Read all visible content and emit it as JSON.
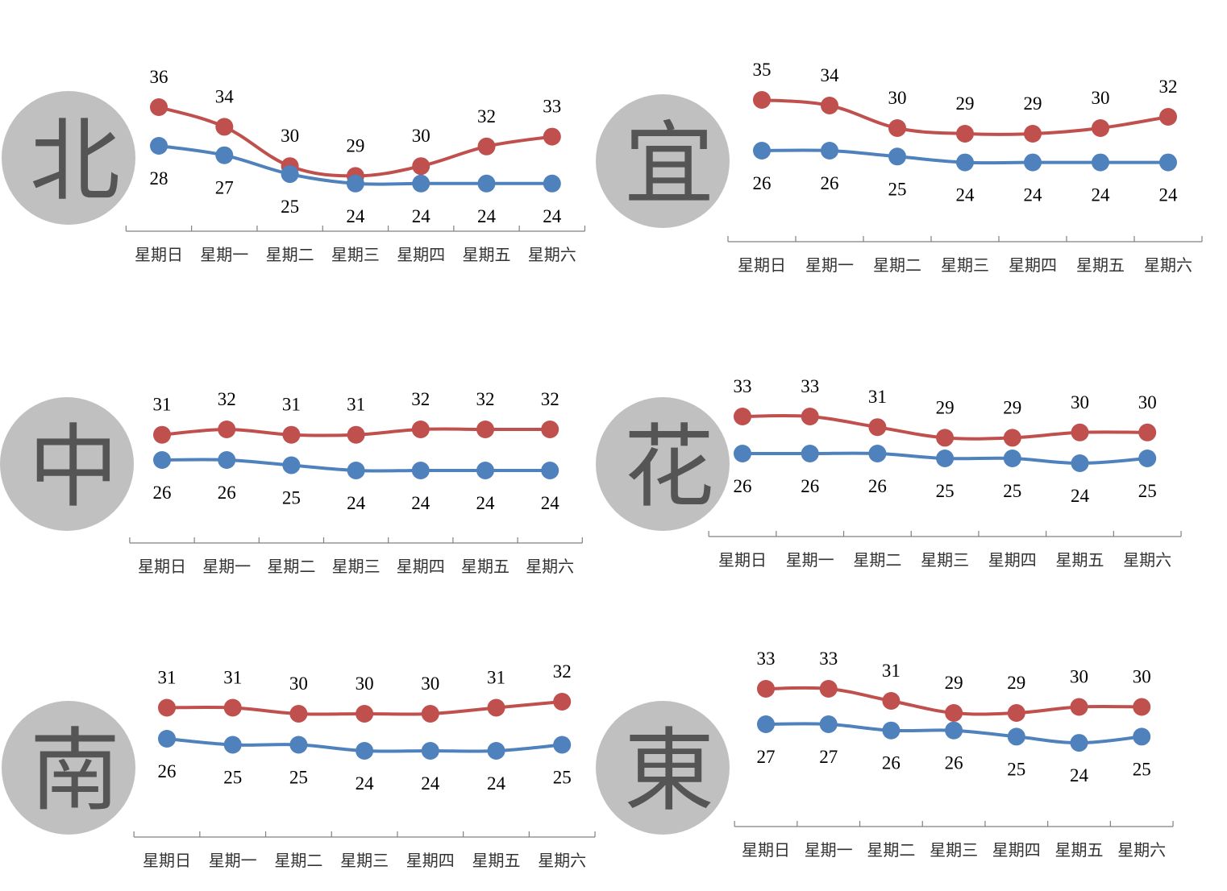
{
  "colors": {
    "high": "#c0504d",
    "low": "#4f81bd",
    "badge": "#c0c0c0",
    "badge_text": "#555555",
    "axis": "#808080"
  },
  "chart_data": [
    {
      "type": "line",
      "region": "北",
      "categories": [
        "星期日",
        "星期一",
        "星期二",
        "星期三",
        "星期四",
        "星期五",
        "星期六"
      ],
      "series": [
        {
          "values": [
            36,
            34,
            30,
            29,
            30,
            32,
            33
          ]
        },
        {
          "values": [
            28,
            27,
            25,
            24,
            24,
            24,
            24
          ]
        }
      ]
    },
    {
      "type": "line",
      "region": "宜",
      "categories": [
        "星期日",
        "星期一",
        "星期二",
        "星期三",
        "星期四",
        "星期五",
        "星期六"
      ],
      "series": [
        {
          "values": [
            35,
            34,
            30,
            29,
            29,
            30,
            32
          ]
        },
        {
          "values": [
            26,
            26,
            25,
            24,
            24,
            24,
            24
          ]
        }
      ]
    },
    {
      "type": "line",
      "region": "中",
      "categories": [
        "星期日",
        "星期一",
        "星期二",
        "星期三",
        "星期四",
        "星期五",
        "星期六"
      ],
      "series": [
        {
          "values": [
            31,
            32,
            31,
            31,
            32,
            32,
            32
          ]
        },
        {
          "values": [
            26,
            26,
            25,
            24,
            24,
            24,
            24
          ]
        }
      ]
    },
    {
      "type": "line",
      "region": "花",
      "categories": [
        "星期日",
        "星期一",
        "星期二",
        "星期三",
        "星期四",
        "星期五",
        "星期六"
      ],
      "series": [
        {
          "values": [
            33,
            33,
            31,
            29,
            29,
            30,
            30
          ]
        },
        {
          "values": [
            26,
            26,
            26,
            25,
            25,
            24,
            25
          ]
        }
      ]
    },
    {
      "type": "line",
      "region": "南",
      "categories": [
        "星期日",
        "星期一",
        "星期二",
        "星期三",
        "星期四",
        "星期五",
        "星期六"
      ],
      "series": [
        {
          "values": [
            31,
            31,
            30,
            30,
            30,
            31,
            32
          ]
        },
        {
          "values": [
            26,
            25,
            25,
            24,
            24,
            24,
            25
          ]
        }
      ]
    },
    {
      "type": "line",
      "region": "東",
      "categories": [
        "星期日",
        "星期一",
        "星期二",
        "星期三",
        "星期四",
        "星期五",
        "星期六"
      ],
      "series": [
        {
          "values": [
            33,
            33,
            31,
            29,
            29,
            30,
            30
          ]
        },
        {
          "values": [
            27,
            27,
            26,
            26,
            25,
            24,
            25
          ]
        }
      ]
    }
  ]
}
